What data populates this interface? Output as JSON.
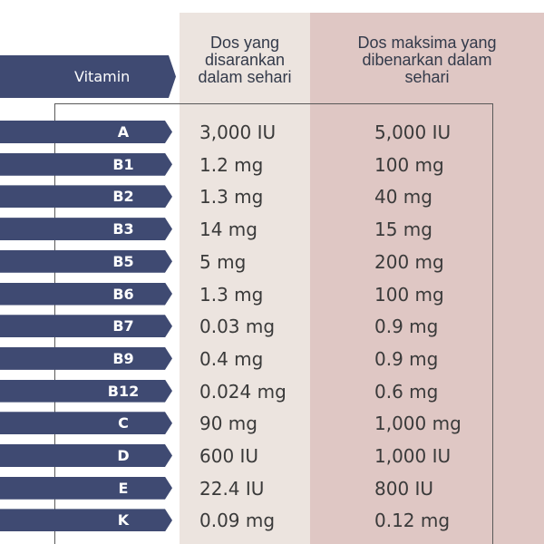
{
  "table": {
    "header": {
      "vitamin_label": "Vitamin",
      "recommended_lines": [
        "Dos yang",
        "disarankan",
        "dalam sehari"
      ],
      "maximum_lines": [
        "Dos maksima yang",
        "dibenarkan dalam",
        "sehari"
      ]
    },
    "rows": [
      {
        "vitamin": "A",
        "recommended": "3,000 IU",
        "maximum": "5,000 IU"
      },
      {
        "vitamin": "B1",
        "recommended": "1.2 mg",
        "maximum": "100 mg"
      },
      {
        "vitamin": "B2",
        "recommended": "1.3 mg",
        "maximum": "40 mg"
      },
      {
        "vitamin": "B3",
        "recommended": "14 mg",
        "maximum": "15 mg"
      },
      {
        "vitamin": "B5",
        "recommended": "5 mg",
        "maximum": "200 mg"
      },
      {
        "vitamin": "B6",
        "recommended": "1.3 mg",
        "maximum": "100 mg"
      },
      {
        "vitamin": "B7",
        "recommended": "0.03 mg",
        "maximum": "0.9 mg"
      },
      {
        "vitamin": "B9",
        "recommended": "0.4 mg",
        "maximum": "0.9 mg"
      },
      {
        "vitamin": "B12",
        "recommended": "0.024 mg",
        "maximum": "0.6 mg"
      },
      {
        "vitamin": "C",
        "recommended": "90 mg",
        "maximum": "1,000 mg"
      },
      {
        "vitamin": "D",
        "recommended": "600 IU",
        "maximum": "1,000 IU"
      },
      {
        "vitamin": "E",
        "recommended": "22.4 IU",
        "maximum": "800 IU"
      },
      {
        "vitamin": "K",
        "recommended": "0.09 mg",
        "maximum": "0.12 mg"
      }
    ]
  },
  "colors": {
    "tag_navy": "#3f4a72",
    "recommended_column": "#ece4df",
    "maximum_column": "#dfc7c4"
  }
}
